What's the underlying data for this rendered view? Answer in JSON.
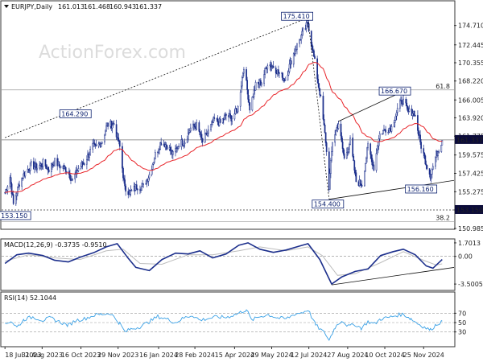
{
  "chart_data": {
    "type": "line",
    "colors": {
      "candle": "#1c2f8c",
      "ma": "#e8252a",
      "macd": "#1c2f8c",
      "signal": "#bdbdbd",
      "rsi": "#3aa1e6",
      "frame": "#333333",
      "last_price_bg": "#0b0b3a"
    },
    "header": {
      "symbol": "EURJPY,Daily",
      "open": "161.013",
      "high": "161.468",
      "low": "160.943",
      "close": "161.337"
    },
    "watermark": "ActionForex.com",
    "price": {
      "ylim": [
        150.985,
        177.5
      ],
      "yticks": [
        "174.710",
        "172.445",
        "170.355",
        "168.220",
        "166.005",
        "163.920",
        "161.775",
        "159.575",
        "157.425",
        "155.275",
        "153.150",
        "150.985"
      ],
      "last_price": 161.337,
      "last_price_label": "161.337",
      "support_label": "153.150",
      "fib_levels": [
        {
          "label": "61.8",
          "value": 167.18
        },
        {
          "label": "38.2",
          "value": 151.8
        }
      ],
      "annotations": [
        {
          "label": "175.410",
          "date": "2024-07-11",
          "value": 175.41
        },
        {
          "label": "164.290",
          "date": "2023-10-30",
          "value": 164.29
        },
        {
          "label": "153.150",
          "date": "2023-07-28",
          "value": 153.15
        },
        {
          "label": "166.670",
          "date": "2024-10-31",
          "value": 166.67
        },
        {
          "label": "154.400",
          "date": "2024-08-05",
          "value": 154.4
        },
        {
          "label": "156.160",
          "date": "2024-12-03",
          "value": 156.16
        }
      ],
      "trend_lines": [
        {
          "from": [
            "2023-07-18",
            161.6
          ],
          "to": [
            "2024-07-11",
            175.6
          ]
        },
        {
          "from": [
            "2024-07-11",
            175.41
          ],
          "to": [
            "2024-08-05",
            154.4
          ]
        },
        {
          "from": [
            "2024-08-05",
            154.4
          ],
          "to": [
            "2024-12-31",
            156.6
          ]
        },
        {
          "from": [
            "2024-08-16",
            163.5
          ],
          "to": [
            "2024-11-05",
            167.2
          ]
        }
      ],
      "close_series": [
        [
          "2023-07-18",
          155.2
        ],
        [
          "2023-07-24",
          157.0
        ],
        [
          "2023-07-28",
          153.8
        ],
        [
          "2023-08-04",
          156.3
        ],
        [
          "2023-08-11",
          157.6
        ],
        [
          "2023-08-18",
          158.4
        ],
        [
          "2023-08-25",
          158.1
        ],
        [
          "2023-09-01",
          158.6
        ],
        [
          "2023-09-08",
          157.9
        ],
        [
          "2023-09-15",
          158.8
        ],
        [
          "2023-09-22",
          158.2
        ],
        [
          "2023-09-29",
          157.9
        ],
        [
          "2023-10-06",
          156.6
        ],
        [
          "2023-10-13",
          158.0
        ],
        [
          "2023-10-20",
          158.7
        ],
        [
          "2023-10-30",
          160.6
        ],
        [
          "2023-11-03",
          160.4
        ],
        [
          "2023-11-10",
          161.2
        ],
        [
          "2023-11-16",
          163.1
        ],
        [
          "2023-11-24",
          163.2
        ],
        [
          "2023-12-01",
          160.5
        ],
        [
          "2023-12-07",
          155.6
        ],
        [
          "2023-12-14",
          155.2
        ],
        [
          "2023-12-21",
          155.9
        ],
        [
          "2023-12-29",
          155.9
        ],
        [
          "2024-01-05",
          157.3
        ],
        [
          "2024-01-12",
          159.6
        ],
        [
          "2024-01-19",
          161.1
        ],
        [
          "2024-01-26",
          160.7
        ],
        [
          "2024-02-02",
          159.6
        ],
        [
          "2024-02-09",
          160.9
        ],
        [
          "2024-02-16",
          161.2
        ],
        [
          "2024-02-23",
          162.7
        ],
        [
          "2024-03-01",
          163.0
        ],
        [
          "2024-03-08",
          161.1
        ],
        [
          "2024-03-15",
          162.3
        ],
        [
          "2024-03-22",
          163.7
        ],
        [
          "2024-03-29",
          163.3
        ],
        [
          "2024-04-05",
          164.2
        ],
        [
          "2024-04-12",
          163.9
        ],
        [
          "2024-04-19",
          165.1
        ],
        [
          "2024-04-26",
          170.0
        ],
        [
          "2024-05-03",
          165.1
        ],
        [
          "2024-05-10",
          167.7
        ],
        [
          "2024-05-17",
          168.1
        ],
        [
          "2024-05-24",
          170.3
        ],
        [
          "2024-05-31",
          169.9
        ],
        [
          "2024-06-07",
          169.1
        ],
        [
          "2024-06-14",
          168.4
        ],
        [
          "2024-06-21",
          170.6
        ],
        [
          "2024-06-28",
          172.4
        ],
        [
          "2024-07-05",
          173.9
        ],
        [
          "2024-07-11",
          175.0
        ],
        [
          "2024-07-18",
          171.0
        ],
        [
          "2024-07-25",
          166.9
        ],
        [
          "2024-08-01",
          161.2
        ],
        [
          "2024-08-05",
          155.9
        ],
        [
          "2024-08-09",
          161.2
        ],
        [
          "2024-08-16",
          163.3
        ],
        [
          "2024-08-23",
          159.1
        ],
        [
          "2024-08-30",
          161.2
        ],
        [
          "2024-09-06",
          156.5
        ],
        [
          "2024-09-13",
          156.2
        ],
        [
          "2024-09-20",
          160.6
        ],
        [
          "2024-09-27",
          158.1
        ],
        [
          "2024-10-04",
          162.0
        ],
        [
          "2024-10-11",
          162.6
        ],
        [
          "2024-10-18",
          162.8
        ],
        [
          "2024-10-25",
          164.9
        ],
        [
          "2024-10-31",
          166.0
        ],
        [
          "2024-11-07",
          164.6
        ],
        [
          "2024-11-14",
          164.6
        ],
        [
          "2024-11-21",
          161.0
        ],
        [
          "2024-11-28",
          158.6
        ],
        [
          "2024-12-03",
          157.2
        ],
        [
          "2024-12-10",
          159.6
        ],
        [
          "2024-12-17",
          161.3
        ]
      ]
    },
    "macd": {
      "label": "MACD(12,26,9) -0.3735 -0.9510",
      "ylim": [
        -4.2,
        2.1
      ],
      "yticks": [
        "1.7013",
        "0.00",
        "-3.5005"
      ],
      "macd_series": [
        [
          "2023-07-18",
          -0.9
        ],
        [
          "2023-08-01",
          0.2
        ],
        [
          "2023-08-15",
          0.4
        ],
        [
          "2023-09-01",
          0.1
        ],
        [
          "2023-09-15",
          -0.5
        ],
        [
          "2023-10-01",
          -0.7
        ],
        [
          "2023-10-15",
          -0.1
        ],
        [
          "2023-11-01",
          0.5
        ],
        [
          "2023-11-15",
          1.2
        ],
        [
          "2023-11-28",
          1.6
        ],
        [
          "2023-12-10",
          -0.1
        ],
        [
          "2023-12-20",
          -1.4
        ],
        [
          "2024-01-05",
          -1.8
        ],
        [
          "2024-01-20",
          -0.4
        ],
        [
          "2024-02-05",
          0.4
        ],
        [
          "2024-02-20",
          0.3
        ],
        [
          "2024-03-05",
          0.7
        ],
        [
          "2024-03-20",
          -0.2
        ],
        [
          "2024-04-05",
          0.3
        ],
        [
          "2024-04-20",
          1.4
        ],
        [
          "2024-05-01",
          1.7
        ],
        [
          "2024-05-15",
          0.9
        ],
        [
          "2024-05-31",
          0.5
        ],
        [
          "2024-06-15",
          0.8
        ],
        [
          "2024-07-01",
          1.3
        ],
        [
          "2024-07-11",
          1.6
        ],
        [
          "2024-07-25",
          -0.4
        ],
        [
          "2024-08-08",
          -3.5
        ],
        [
          "2024-08-20",
          -2.6
        ],
        [
          "2024-09-05",
          -1.9
        ],
        [
          "2024-09-20",
          -1.6
        ],
        [
          "2024-10-05",
          0.1
        ],
        [
          "2024-10-20",
          0.6
        ],
        [
          "2024-11-01",
          0.9
        ],
        [
          "2024-11-15",
          0.2
        ],
        [
          "2024-11-28",
          -1.2
        ],
        [
          "2024-12-06",
          -1.5
        ],
        [
          "2024-12-17",
          -0.4
        ]
      ],
      "signal_series": [
        [
          "2023-07-18",
          -0.6
        ],
        [
          "2023-08-15",
          0.2
        ],
        [
          "2023-09-15",
          -0.2
        ],
        [
          "2023-10-15",
          -0.4
        ],
        [
          "2023-11-15",
          0.7
        ],
        [
          "2023-12-05",
          0.9
        ],
        [
          "2023-12-25",
          -0.9
        ],
        [
          "2024-01-20",
          -1.0
        ],
        [
          "2024-02-20",
          0.2
        ],
        [
          "2024-03-20",
          0.2
        ],
        [
          "2024-04-20",
          0.7
        ],
        [
          "2024-05-15",
          1.2
        ],
        [
          "2024-06-15",
          0.7
        ],
        [
          "2024-07-11",
          1.2
        ],
        [
          "2024-07-28",
          0.1
        ],
        [
          "2024-08-15",
          -2.4
        ],
        [
          "2024-09-05",
          -2.2
        ],
        [
          "2024-10-05",
          -0.8
        ],
        [
          "2024-11-01",
          0.6
        ],
        [
          "2024-11-25",
          -0.5
        ],
        [
          "2024-12-10",
          -1.1
        ],
        [
          "2024-12-17",
          -0.95
        ]
      ],
      "trend_line": {
        "from": [
          "2024-08-08",
          -3.6
        ],
        "to": [
          "2024-12-31",
          -1.4
        ]
      }
    },
    "rsi": {
      "label": "RSI(14) 52.1044",
      "ylim": [
        0,
        100
      ],
      "yticks": [
        "70",
        "50",
        "30"
      ],
      "series": [
        [
          "2023-07-18",
          45
        ],
        [
          "2023-07-25",
          54
        ],
        [
          "2023-08-01",
          40
        ],
        [
          "2023-08-10",
          57
        ],
        [
          "2023-08-20",
          62
        ],
        [
          "2023-09-01",
          55
        ],
        [
          "2023-09-10",
          60
        ],
        [
          "2023-09-20",
          52
        ],
        [
          "2023-10-01",
          44
        ],
        [
          "2023-10-10",
          55
        ],
        [
          "2023-10-20",
          58
        ],
        [
          "2023-11-01",
          66
        ],
        [
          "2023-11-10",
          68
        ],
        [
          "2023-11-20",
          70
        ],
        [
          "2023-12-01",
          48
        ],
        [
          "2023-12-07",
          30
        ],
        [
          "2023-12-14",
          36
        ],
        [
          "2023-12-25",
          41
        ],
        [
          "2024-01-05",
          52
        ],
        [
          "2024-01-15",
          63
        ],
        [
          "2024-01-25",
          58
        ],
        [
          "2024-02-05",
          50
        ],
        [
          "2024-02-15",
          60
        ],
        [
          "2024-02-25",
          66
        ],
        [
          "2024-03-05",
          55
        ],
        [
          "2024-03-15",
          59
        ],
        [
          "2024-03-25",
          62
        ],
        [
          "2024-04-05",
          61
        ],
        [
          "2024-04-20",
          70
        ],
        [
          "2024-04-29",
          78
        ],
        [
          "2024-05-05",
          55
        ],
        [
          "2024-05-15",
          63
        ],
        [
          "2024-05-25",
          67
        ],
        [
          "2024-06-05",
          60
        ],
        [
          "2024-06-15",
          58
        ],
        [
          "2024-06-25",
          68
        ],
        [
          "2024-07-05",
          72
        ],
        [
          "2024-07-11",
          78
        ],
        [
          "2024-07-20",
          45
        ],
        [
          "2024-08-01",
          25
        ],
        [
          "2024-08-05",
          12
        ],
        [
          "2024-08-12",
          40
        ],
        [
          "2024-08-20",
          55
        ],
        [
          "2024-08-28",
          42
        ],
        [
          "2024-09-05",
          46
        ],
        [
          "2024-09-12",
          38
        ],
        [
          "2024-09-20",
          52
        ],
        [
          "2024-09-28",
          47
        ],
        [
          "2024-10-05",
          58
        ],
        [
          "2024-10-15",
          61
        ],
        [
          "2024-10-25",
          66
        ],
        [
          "2024-11-01",
          68
        ],
        [
          "2024-11-10",
          58
        ],
        [
          "2024-11-18",
          48
        ],
        [
          "2024-11-26",
          40
        ],
        [
          "2024-12-03",
          34
        ],
        [
          "2024-12-10",
          46
        ],
        [
          "2024-12-17",
          53
        ]
      ]
    },
    "x_ticks": [
      {
        "date": "2023-07-18",
        "label": "18 Jul 2023"
      },
      {
        "date": "2023-08-31",
        "label": "31 Aug 2023"
      },
      {
        "date": "2023-10-16",
        "label": "16 Oct 2023"
      },
      {
        "date": "2023-11-29",
        "label": "29 Nov 2023"
      },
      {
        "date": "2024-01-16",
        "label": "16 Jan 2024"
      },
      {
        "date": "2024-02-28",
        "label": "28 Feb 2024"
      },
      {
        "date": "2024-04-15",
        "label": "15 Apr 2024"
      },
      {
        "date": "2024-05-29",
        "label": "29 May 2024"
      },
      {
        "date": "2024-07-12",
        "label": "12 Jul 2024"
      },
      {
        "date": "2024-08-27",
        "label": "27 Aug 2024"
      },
      {
        "date": "2024-10-10",
        "label": "10 Oct 2024"
      },
      {
        "date": "2024-11-25",
        "label": "25 Nov 2024"
      }
    ],
    "x_range": [
      "2023-07-14",
      "2024-12-31"
    ]
  }
}
